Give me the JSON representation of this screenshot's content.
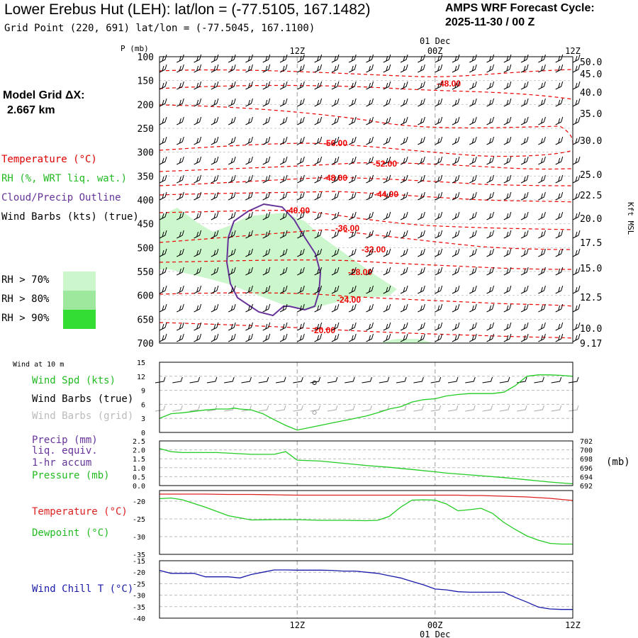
{
  "header": {
    "title": "Lower Erebus Hut (LEH):  lat/lon = (-77.5105, 167.1482)",
    "subtitle": "Grid Point (220, 691) lat/lon = (-77.5045, 167.1100)",
    "cycle_line1": "AMPS WRF Forecast Cycle:",
    "cycle_line2": "2025-11-30 / 00  Z",
    "grid_label": "Model Grid ΔX:",
    "grid_value": "2.667 km"
  },
  "legend": {
    "temperature": "Temperature (°C)",
    "rh": "RH (%, WRT liq. wat.)",
    "cloud": "Cloud/Precip Outline",
    "wind_barbs": "Wind Barbs (kts) (true)",
    "rh70": "RH > 70%",
    "rh80": "RH > 80%",
    "rh90": "RH > 90%",
    "rh_colors": [
      "#ccf7cc",
      "#9ee89e",
      "#33dd33"
    ]
  },
  "time_axis": {
    "top_date": "01 Dec",
    "bottom_date": "01 Dec",
    "ticks": [
      "12Z",
      "00Z",
      "12Z"
    ]
  },
  "chart_data": [
    {
      "type": "line",
      "name": "profile",
      "ylabel": "P (mb)",
      "y2label": "Kft MSL",
      "pressure_ticks": [
        "100",
        "150",
        "200",
        "250",
        "300",
        "350",
        "400",
        "450",
        "500",
        "550",
        "600",
        "650",
        "700"
      ],
      "kft_ticks": [
        "50.0",
        "45.0",
        "40.0",
        "35.0",
        "30.0",
        "25.0",
        "22.5",
        "20.0",
        "17.5",
        "15.0",
        "12.5",
        "10.0",
        "9.17"
      ],
      "isotherm_labels": [
        "-48.00",
        "-56.00",
        "-52.00",
        "-48.00",
        "-44.00",
        "-40.00",
        "-36.00",
        "-32.00",
        "-28.00",
        "-24.00",
        "-20.00"
      ],
      "isotherm_color": "#ee0000",
      "cloud_color": "#663399"
    },
    {
      "type": "line",
      "name": "wind10m",
      "heading": "Wind at 10 m",
      "labels": [
        "Wind Spd (kts)",
        "Wind Barbs (true)",
        "Wind Barbs (grid)"
      ],
      "yticks": [
        "15",
        "12",
        "9",
        "6",
        "3",
        "0"
      ],
      "ylim": [
        0,
        15
      ],
      "x": [
        0,
        1,
        2,
        3,
        4,
        5,
        6,
        6.5,
        7,
        8,
        9,
        10,
        11,
        12,
        13,
        14,
        15,
        16,
        17,
        18,
        19,
        20,
        21,
        22,
        23,
        24,
        25,
        26,
        27,
        28,
        29,
        30,
        31,
        32,
        33,
        34,
        35,
        36
      ],
      "wind_speed": [
        3,
        4,
        4.2,
        4.5,
        4.8,
        5,
        5,
        5.2,
        5,
        4.8,
        4,
        2.7,
        1.5,
        0.5,
        1,
        1.5,
        2,
        2.5,
        3,
        3.5,
        4.2,
        5,
        5.5,
        6.5,
        7,
        7.2,
        7.8,
        8.1,
        8.3,
        8.3,
        8.3,
        8.6,
        10,
        12,
        12.3,
        12.3,
        12.2,
        12
      ],
      "series_color": "#22cc22"
    },
    {
      "type": "line",
      "name": "precip_pressure",
      "labels": [
        "Precip (mm)",
        "liq. equiv.",
        "1-hr accum",
        "Pressure (mb)"
      ],
      "yticks": [
        "2.5",
        "2.0",
        "1.5",
        "1.0",
        "0.5",
        "0.0"
      ],
      "ylim": [
        0,
        2.5
      ],
      "y2ticks": [
        "702",
        "700",
        "698",
        "696",
        "694",
        "692"
      ],
      "y2lim": [
        692,
        702
      ],
      "y2label": "(mb)",
      "x": [
        0,
        1,
        2,
        5,
        8,
        10,
        11,
        12,
        14,
        16,
        18,
        20,
        22,
        24,
        25,
        26,
        28,
        30,
        32,
        34,
        36
      ],
      "pressure": [
        700.3,
        699.6,
        699.4,
        699.4,
        699.0,
        699.0,
        699.6,
        697.7,
        697.5,
        697.0,
        696.5,
        696.1,
        695.6,
        695.1,
        694.8,
        694.6,
        694.2,
        693.8,
        693.3,
        692.8,
        692.4
      ],
      "series_color": "#22cc22"
    },
    {
      "type": "line",
      "name": "temp_dew",
      "labels": [
        "Temperature (°C)",
        "Dewpoint (°C)"
      ],
      "yticks": [
        "-20",
        "-25",
        "-30",
        "-35"
      ],
      "ylim": [
        -35,
        -17
      ],
      "x": [
        0,
        1,
        2,
        4,
        6,
        8,
        10,
        12,
        14,
        16,
        18,
        19,
        20,
        21,
        22,
        23,
        24,
        25,
        26,
        27,
        28,
        29,
        30,
        31,
        32,
        33,
        34,
        35,
        36
      ],
      "temperature": [
        -18.0,
        -18.0,
        -18.0,
        -18.0,
        -18.1,
        -18.1,
        -18.2,
        -18.3,
        -18.3,
        -18.3,
        -18.3,
        -18.3,
        -18.3,
        -18.3,
        -18.3,
        -18.3,
        -18.3,
        -18.3,
        -18.3,
        -18.4,
        -18.4,
        -18.5,
        -18.6,
        -18.7,
        -18.8,
        -19.0,
        -19.2,
        -19.5,
        -19.8
      ],
      "dewpoint": [
        -19.3,
        -19.1,
        -19.6,
        -21.7,
        -24.1,
        -25.3,
        -25.2,
        -25.2,
        -25.4,
        -25.4,
        -25.5,
        -25.4,
        -24.3,
        -21.7,
        -19.7,
        -19.6,
        -19.7,
        -20.8,
        -22.7,
        -22.4,
        -22.0,
        -23.4,
        -26.0,
        -28.0,
        -29.8,
        -31.0,
        -31.9,
        -32.1,
        -32.1
      ],
      "temperature_color": "#dd2222",
      "dewpoint_color": "#22cc22"
    },
    {
      "type": "line",
      "name": "windchill",
      "labels": [
        "Wind Chill T (°C)"
      ],
      "yticks": [
        "-15",
        "-20",
        "-25",
        "-30",
        "-35",
        "-40"
      ],
      "ylim": [
        -40,
        -15
      ],
      "x": [
        0,
        1,
        2,
        3,
        4,
        5,
        6,
        7,
        8,
        9,
        10,
        11,
        12,
        13,
        14,
        15,
        16,
        17,
        18,
        19,
        20,
        21,
        22,
        23,
        24,
        25,
        26,
        27,
        28,
        29,
        30,
        31,
        32,
        33,
        34,
        35,
        36
      ],
      "windchill": [
        -19.2,
        -20.5,
        -20.5,
        -20.5,
        -22.0,
        -22.0,
        -22.0,
        -22.5,
        -21.0,
        -20.0,
        -19.0,
        -19.0,
        -19.1,
        -19.1,
        -19.1,
        -19.2,
        -19.5,
        -19.5,
        -20.0,
        -20.5,
        -21.5,
        -22.5,
        -24.0,
        -25.5,
        -27.3,
        -27.7,
        -28.5,
        -28.7,
        -28.7,
        -28.7,
        -28.7,
        -31.0,
        -33.0,
        -35.2,
        -36.0,
        -36.2,
        -36.2
      ],
      "series_color": "#1a1aaa"
    }
  ]
}
